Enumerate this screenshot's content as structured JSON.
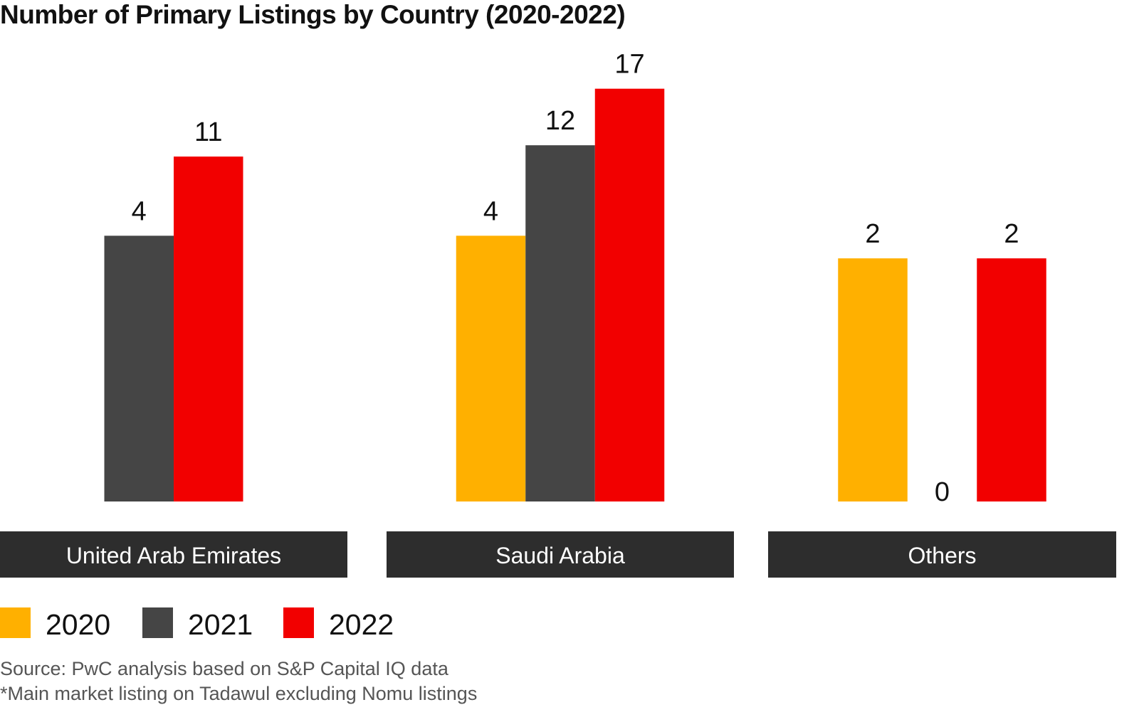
{
  "chart_data": {
    "type": "bar",
    "title": "Number of Primary Listings by Country (2020-2022)",
    "xlabel": "",
    "ylabel": "",
    "categories": [
      "United Arab Emirates",
      "Saudi Arabia",
      "Others"
    ],
    "series": [
      {
        "name": "2020",
        "color": "#FFB000",
        "values": [
          null,
          4,
          2
        ]
      },
      {
        "name": "2021",
        "color": "#454545",
        "values": [
          4,
          12,
          0
        ]
      },
      {
        "name": "2022",
        "color": "#F20000",
        "values": [
          11,
          17,
          2
        ]
      }
    ],
    "grid": false,
    "legend": "bottom-left",
    "data_labels": true
  },
  "footer": {
    "source": "Source: PwC analysis based on S&P Capital IQ data",
    "note": "*Main market listing on Tadawul excluding Nomu listings"
  }
}
